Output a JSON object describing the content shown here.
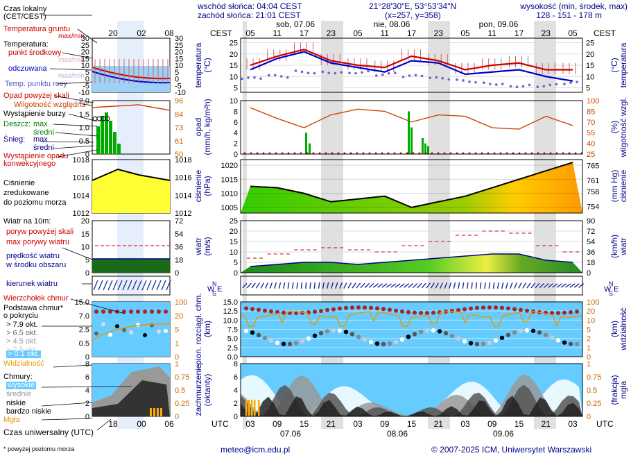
{
  "header": {
    "sunrise": "wschód słońca: 04:04 CEST",
    "sunset": "zachód słońca: 21:01 CEST",
    "coords": "21°28'30\"E, 53°53'34\"N",
    "grid": "(x=257, y=358)",
    "height_title": "wysokość (min, środek, max)",
    "height_values": "128 - 151 - 178 m"
  },
  "time_axis": {
    "cest_label": "CEST",
    "utc_label": "UTC",
    "top_hours": [
      "05",
      "11",
      "17",
      "23",
      "05",
      "11",
      "17",
      "23",
      "05",
      "11",
      "17",
      "23",
      "05"
    ],
    "day_labels_top": [
      "sob, 07.06",
      "nie, 08.06",
      "pon, 09.06"
    ],
    "bottom_hours": [
      "03",
      "09",
      "15",
      "21",
      "03",
      "09",
      "15",
      "21",
      "03",
      "09",
      "15",
      "21",
      "03"
    ],
    "day_labels_bottom": [
      "07.06",
      "08.06",
      "09.06"
    ],
    "small_top_hours": [
      "20",
      "02",
      "08"
    ],
    "small_bottom_hours": [
      "18",
      "00",
      "06"
    ]
  },
  "legend": {
    "local_time": "Czas lokalny\n(CET/CEST)",
    "ground_temp": "Temperatura gruntu",
    "max_min": "max/min",
    "temperature": "Temperatura:",
    "mid_point": "punkt środkowy",
    "max_min_small": "max/min",
    "felt": "odczuwana",
    "max_min_small2": "max/min",
    "dew_point": "Temp. punktu rosy",
    "precip_above": "Opad powyżej skali",
    "humidity": "Wilgotność względna",
    "storm": "Wystąpienie burzy",
    "rain": "Deszcz:",
    "rain_max": "max",
    "rain_mean": "średni",
    "snow": "Śnieg:",
    "snow_max": "max",
    "snow_mean": "średni",
    "convective": "Wystąpienie opadu\nkonwekcyjnego",
    "pressure": "Ciśnienie\nzredukowane\ndo poziomu morza",
    "wind_10m": "Wiatr na 10m:",
    "gust_above": "poryw powyżej skali",
    "max_gust": "max porywy wiatru",
    "wind_speed": "prędkość wiatru\nw środku obszaru",
    "wind_dir": "kierunek wiatru",
    "cloud_top": "Wierzchołek chmur",
    "cloud_base": "Podstawa chmur*\no pokryciu",
    "okt79": "> 7.9 okt.",
    "okt65": "> 6.5 okt.",
    "okt45": "> 4.5 okt.",
    "okt25": "> 2.5 okt.",
    "okt01": "> 0.1 okt.",
    "visibility": "Widzialność",
    "clouds": "Chmury:",
    "high": "wysokie",
    "middle": "średnie",
    "low": "niskie",
    "very_low": "bardzo niskie",
    "fog": "Mgła",
    "utc_time": "Czas uniwersalny (UTC)",
    "footnote": "* powyżej poziomu morza"
  },
  "axis_titles": {
    "temp_left": "temperatura\n(°C)",
    "temp_right": "(°C)\ntemperatura",
    "precip_left": "opad\n(mm/h, kg/m²h)",
    "hum_right": "(%)\nwilgotność wzgl.",
    "pres_left": "ciśnienie\n(hPa)",
    "pres_right": "(mm Hg)\nciśnienie",
    "wind_left": "wiatr\n(m/s)",
    "wind_right": "(km/h)\nwiatr",
    "cloud_left": "pion. rozciągł. chm.\n(km)",
    "vis_right": "(km)\nwidzialność",
    "cover_left": "zachmurzenie\n(oktanty)",
    "fog_right": "(frakcja)\nmgła",
    "wind_dir_letters": "WNSE"
  },
  "footer": {
    "email": "meteo@icm.edu.pl",
    "copyright": "© 2007-2025 ICM, Uniwersytet Warszawski"
  },
  "colors": {
    "temp_mid": "#cc0000",
    "temp_felt": "#0000cc",
    "dew": "#6666cc",
    "humidity": "#cc4400",
    "pressure_fill_low": "#33cc00",
    "pressure_fill_high": "#ff9900",
    "wind_fill": "#228b22",
    "cloud_bg": "#66ccff",
    "visibility": "#e69900",
    "night_band": "#e0e0e0"
  },
  "chart_data": [
    {
      "type": "line",
      "name": "temperature",
      "x": [
        "03",
        "09",
        "15",
        "21",
        "03",
        "09",
        "15",
        "21",
        "03",
        "09",
        "15",
        "21",
        "03"
      ],
      "series": [
        {
          "name": "punkt środkowy",
          "values": [
            15,
            19,
            22,
            17,
            15,
            14,
            19,
            17,
            13,
            15,
            16,
            13,
            13
          ]
        },
        {
          "name": "odczuwana",
          "values": [
            13,
            18,
            21,
            16,
            14,
            12,
            17,
            16,
            11,
            12,
            13,
            10,
            8
          ]
        },
        {
          "name": "Temp. punktu rosy",
          "values": [
            9,
            10,
            12,
            12,
            12,
            11,
            10,
            9,
            8,
            7,
            6,
            6,
            7
          ]
        }
      ],
      "ylim": [
        3,
        27
      ],
      "yticks": [
        5,
        10,
        15,
        20,
        25
      ]
    },
    {
      "type": "line",
      "name": "humidity",
      "series": [
        {
          "name": "Wilgotność względna",
          "values": [
            90,
            75,
            62,
            80,
            88,
            85,
            70,
            80,
            78,
            62,
            60,
            78,
            65
          ]
        }
      ],
      "ylim": [
        25,
        100
      ],
      "yticks_left": [
        0,
        2,
        4,
        6,
        8,
        10
      ],
      "yticks_right": [
        25,
        40,
        55,
        70,
        85,
        100
      ]
    },
    {
      "type": "area",
      "name": "pressure",
      "series": [
        {
          "name": "Ciśnienie",
          "values": [
            1012.5,
            1012,
            1010,
            1007,
            1008,
            1009,
            1005,
            1007,
            1009,
            1012,
            1015,
            1018,
            1021
          ]
        }
      ],
      "ylim": [
        1003,
        1022
      ],
      "yticks": [
        1005,
        1010,
        1015,
        1020
      ],
      "yticks_right": [
        754,
        758,
        761,
        765
      ]
    },
    {
      "type": "area",
      "name": "wind",
      "series": [
        {
          "name": "prędkość wiatru",
          "values": [
            3,
            4,
            5,
            5,
            4,
            5,
            6,
            7,
            8,
            9,
            9,
            6,
            5
          ]
        },
        {
          "name": "max porywy wiatru",
          "values": [
            7,
            9,
            11,
            12,
            11,
            10,
            13,
            15,
            18,
            20,
            19,
            13,
            10
          ]
        }
      ],
      "ylim": [
        0,
        25
      ],
      "yticks": [
        0,
        5,
        10,
        15,
        20,
        25
      ],
      "yticks_right": [
        0,
        18,
        36,
        54,
        72,
        90
      ]
    },
    {
      "type": "scatter",
      "name": "cloud",
      "ylim": [
        0,
        15
      ],
      "yticks": [
        "0.0",
        "2.5",
        "5.0",
        "7.5",
        "10.0",
        "12.5",
        "15.0"
      ],
      "yticks_right": [
        "0",
        "1",
        "2",
        "5",
        "10",
        "20",
        "100"
      ]
    },
    {
      "type": "area",
      "name": "cloud_cover",
      "ylim": [
        0,
        8
      ],
      "yticks": [
        0,
        2,
        4,
        6,
        8
      ],
      "yticks_right": [
        "0",
        "0.25",
        "0.5",
        "0.75",
        "1"
      ]
    }
  ]
}
